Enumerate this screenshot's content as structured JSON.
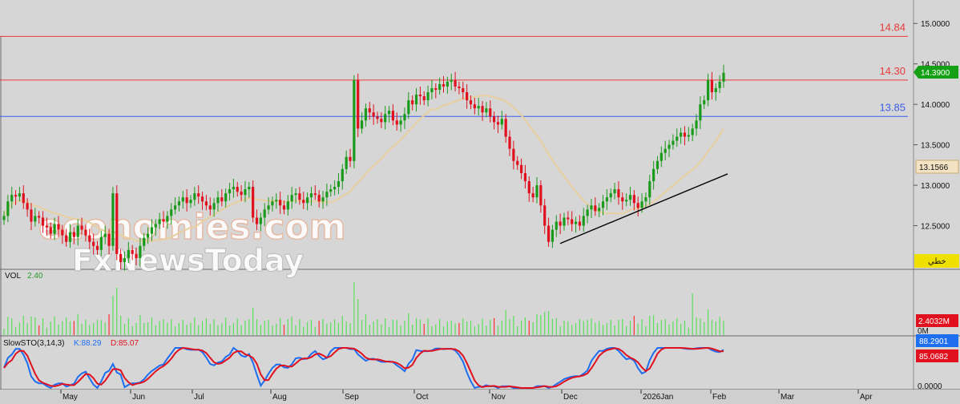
{
  "chart_data": [
    {
      "type": "candlestick",
      "panel": "price",
      "x_months": [
        "May",
        "Jun",
        "Jul",
        "Aug",
        "Sep",
        "Oct",
        "Nov",
        "Dec",
        "2026Jan",
        "Feb",
        "Mar",
        "Apr"
      ],
      "yticks": [
        "15.0000",
        "14.5000",
        "14.0000",
        "13.5000",
        "13.0000",
        "12.5000"
      ],
      "ylim": [
        12.0,
        15.25
      ],
      "last_price": "14.3900",
      "ma_value": "13.1566",
      "ma_color": "#e8cf9f",
      "up_color": "#1a9a1a",
      "down_color": "#e0101e",
      "horizontal_lines": [
        {
          "label": "14.84",
          "value": 14.84,
          "color": "#e83a3a"
        },
        {
          "label": "14.30",
          "value": 14.3,
          "color": "#e83a3a"
        },
        {
          "label": "13.85",
          "value": 13.85,
          "color": "#3a5fe8"
        }
      ],
      "trendline": {
        "from": [
          "Nov-24",
          12.28
        ],
        "to": [
          "Feb-12",
          13.14
        ],
        "color": "#000000"
      },
      "closes": [
        12.62,
        12.8,
        12.88,
        12.86,
        12.9,
        12.78,
        12.7,
        12.55,
        12.62,
        12.6,
        12.5,
        12.48,
        12.4,
        12.52,
        12.45,
        12.38,
        12.3,
        12.42,
        12.36,
        12.5,
        12.45,
        12.38,
        12.3,
        12.25,
        12.2,
        12.36,
        12.4,
        12.25,
        12.9,
        12.15,
        12.05,
        12.1,
        12.2,
        12.15,
        12.1,
        12.25,
        12.35,
        12.4,
        12.48,
        12.52,
        12.58,
        12.55,
        12.62,
        12.7,
        12.75,
        12.8,
        12.85,
        12.78,
        12.82,
        12.9,
        12.86,
        12.8,
        12.75,
        12.7,
        12.78,
        12.85,
        12.8,
        12.9,
        12.95,
        12.98,
        12.92,
        12.88,
        12.95,
        12.98,
        12.6,
        12.52,
        12.6,
        12.7,
        12.75,
        12.8,
        12.82,
        12.75,
        12.7,
        12.8,
        12.88,
        12.9,
        12.82,
        12.78,
        12.85,
        12.9,
        12.88,
        12.8,
        12.85,
        12.92,
        12.95,
        12.98,
        13.05,
        13.2,
        13.35,
        13.3,
        14.3,
        13.7,
        13.8,
        13.95,
        13.9,
        13.85,
        13.82,
        13.78,
        13.88,
        13.92,
        13.8,
        13.75,
        13.8,
        13.88,
        14.05,
        14.0,
        14.12,
        14.1,
        14.05,
        14.15,
        14.2,
        14.18,
        14.25,
        14.22,
        14.28,
        14.3,
        14.22,
        14.2,
        14.15,
        14.05,
        14.0,
        13.95,
        13.98,
        13.9,
        13.95,
        13.85,
        13.78,
        13.75,
        13.82,
        13.6,
        13.45,
        13.3,
        13.25,
        13.15,
        13.05,
        12.9,
        12.85,
        13.0,
        12.75,
        12.5,
        12.3,
        12.45,
        12.55,
        12.5,
        12.6,
        12.58,
        12.52,
        12.55,
        12.5,
        12.62,
        12.7,
        12.75,
        12.68,
        12.72,
        12.8,
        12.85,
        12.9,
        12.95,
        12.85,
        12.8,
        12.82,
        12.88,
        12.78,
        12.72,
        12.8,
        12.85,
        13.05,
        13.2,
        13.3,
        13.4,
        13.45,
        13.5,
        13.55,
        13.6,
        13.65,
        13.6,
        13.62,
        13.7,
        13.8,
        14.0,
        14.05,
        14.3,
        14.15,
        14.2,
        14.28,
        14.39
      ]
    },
    {
      "type": "bar",
      "panel": "volume",
      "label": "VOL",
      "value_label": "2.40",
      "last_value": "2.4032M",
      "zero_label": "0M",
      "bar_color": "#58e058",
      "down_bar_color": "#ff3030"
    },
    {
      "type": "line",
      "panel": "oscillator",
      "label": "SlowSTO(3,14,3)",
      "k_label": "K:88.29",
      "d_label": "D:85.07",
      "k_value": "88.2901",
      "d_value": "85.0682",
      "bottom_label": "0.0000",
      "k_color": "#1e6ef0",
      "d_color": "#e0101e"
    }
  ],
  "watermark": {
    "line1": "economies.com",
    "line2": "FxNewsToday"
  },
  "badge_label": "خطي",
  "colors": {
    "background": "#d6d6d6",
    "grid": "#b8b8b8"
  }
}
